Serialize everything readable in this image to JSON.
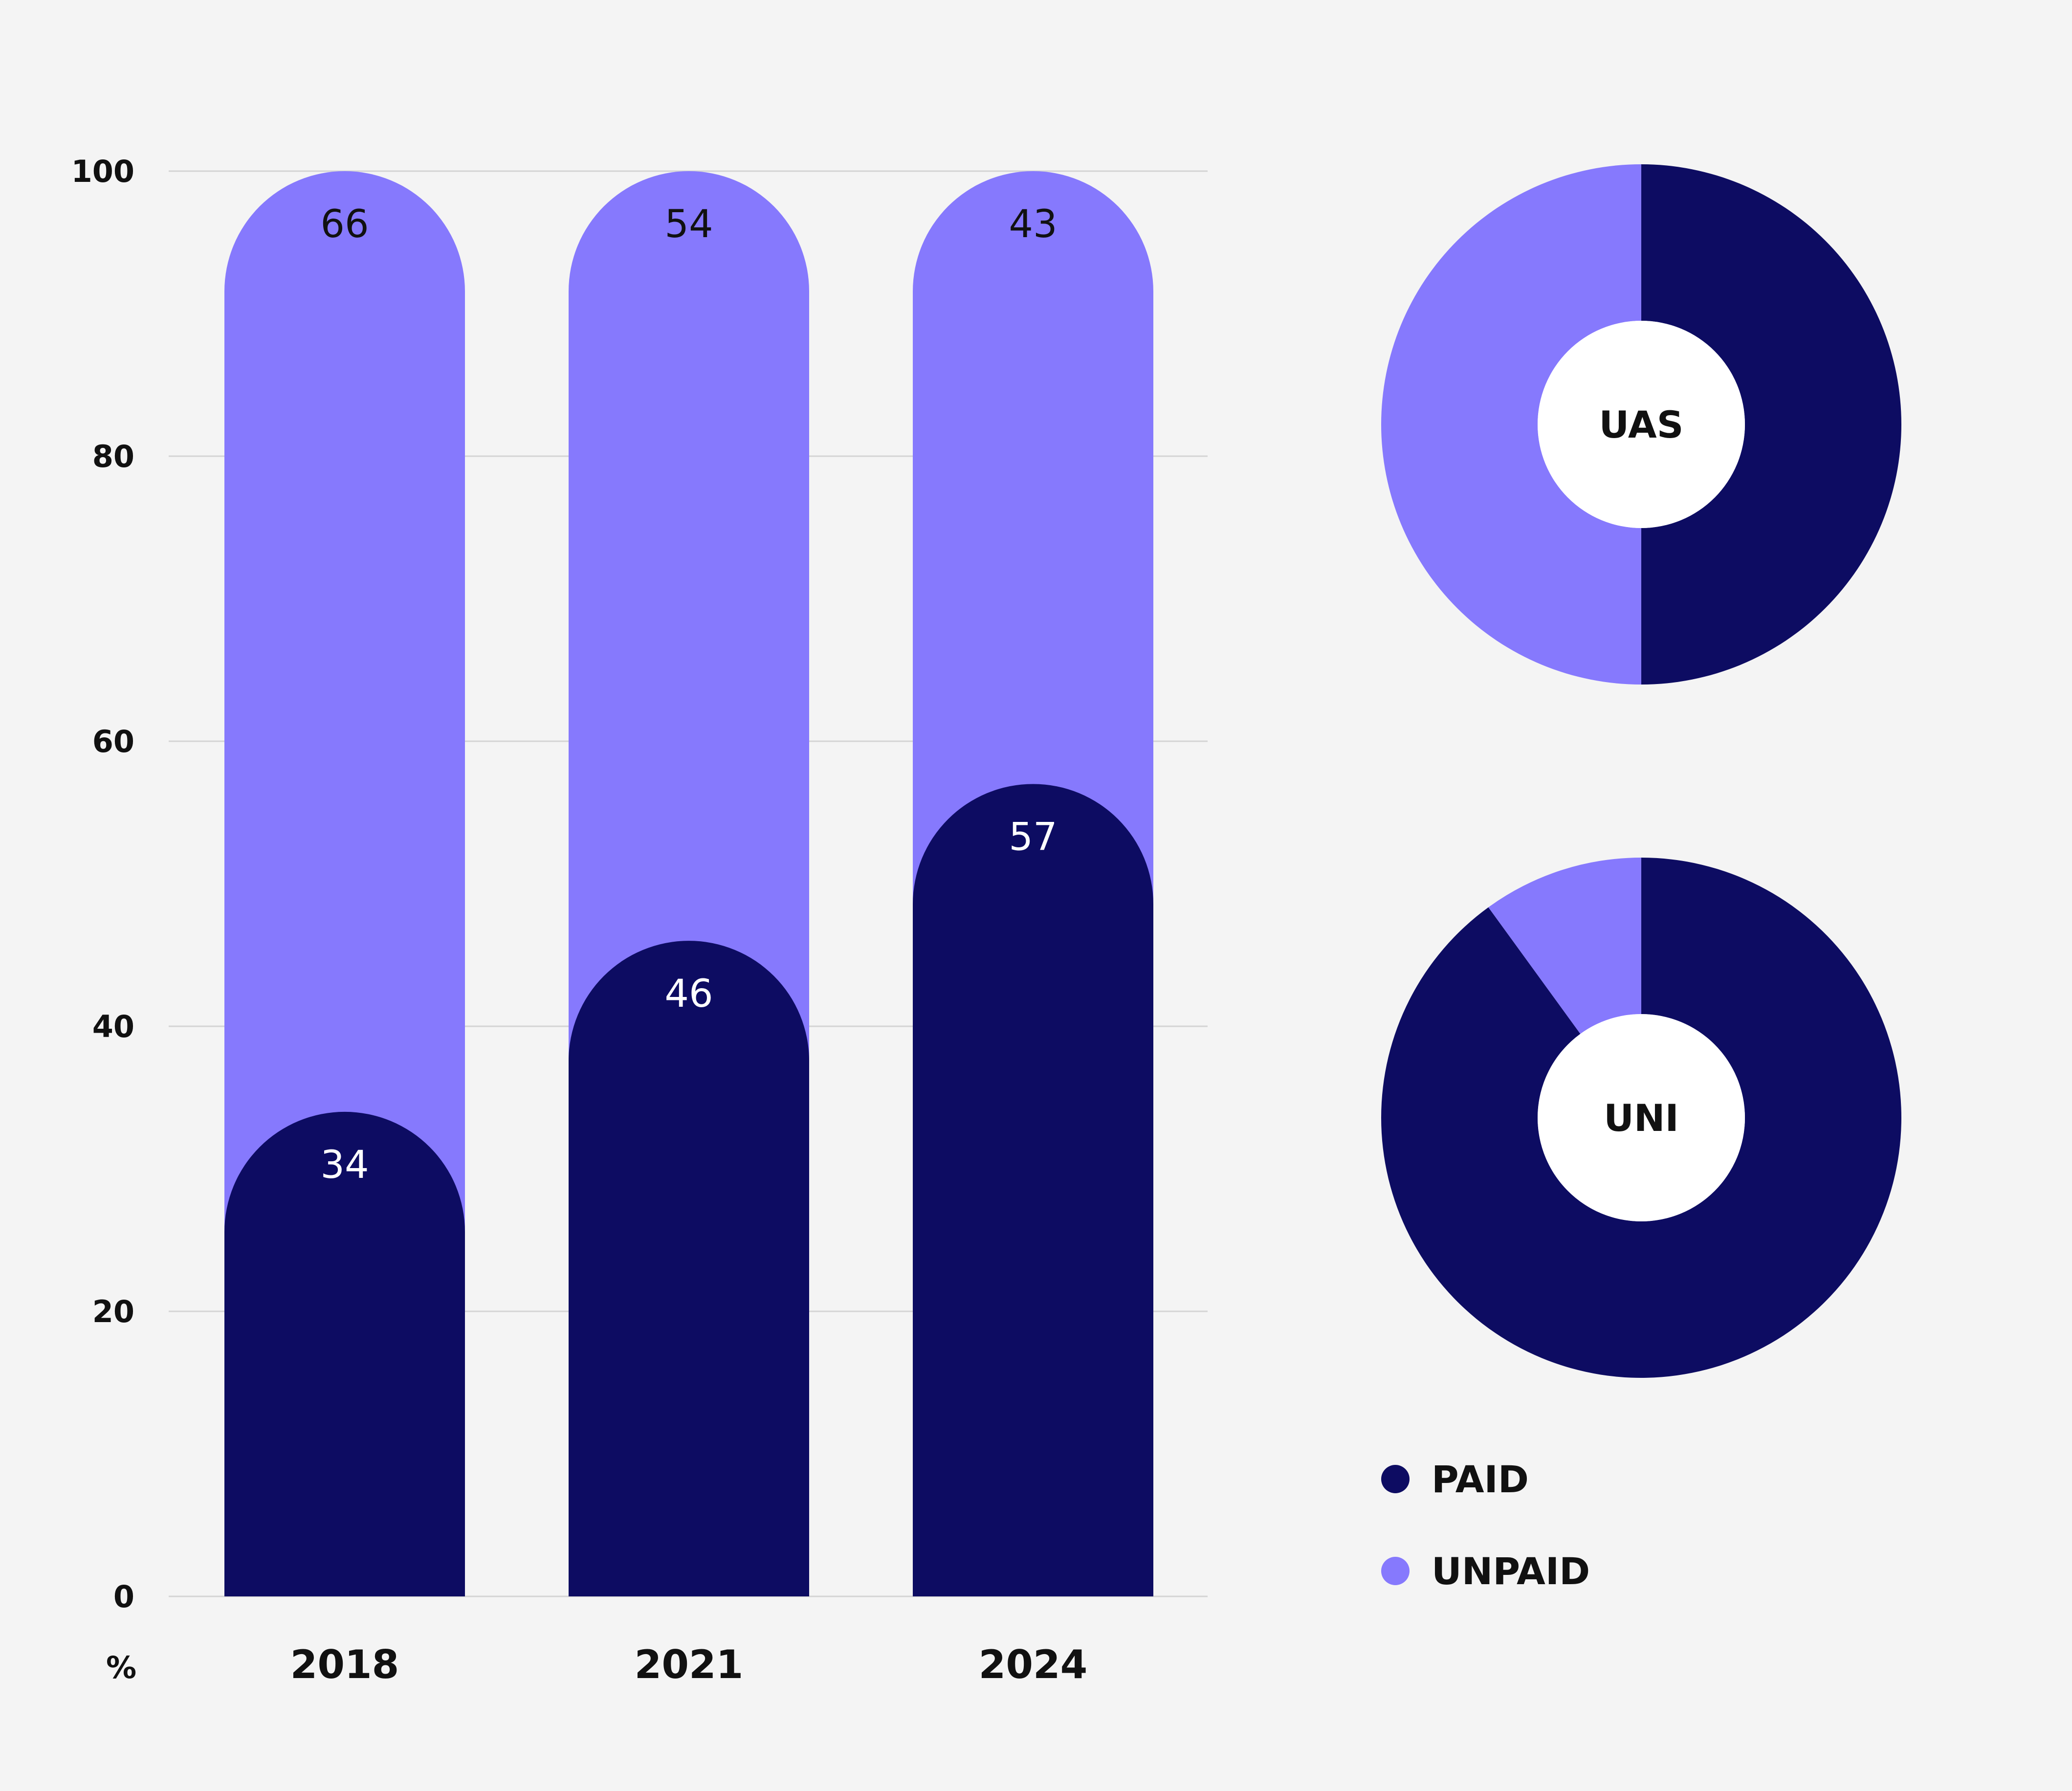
{
  "colors": {
    "paid": "#0d0c62",
    "unpaid": "#8679fd",
    "background": "#f4f4f4",
    "grid": "#d4d4d4",
    "donut_hole": "#ffffff"
  },
  "chart_data": [
    {
      "type": "bar",
      "stacked": true,
      "categories": [
        "2018",
        "2021",
        "2024"
      ],
      "ylabel": "%",
      "ylim": [
        0,
        100
      ],
      "yticks": [
        0,
        20,
        40,
        60,
        80,
        100
      ],
      "grid": true,
      "series": [
        {
          "name": "PAID",
          "key": "paid",
          "values": [
            34,
            46,
            57
          ]
        },
        {
          "name": "UNPAID",
          "key": "unpaid",
          "values": [
            66,
            54,
            43
          ]
        }
      ]
    },
    {
      "type": "pie",
      "style": "donut",
      "label": "UAS",
      "slices": [
        {
          "name": "PAID",
          "key": "paid",
          "value": 50
        },
        {
          "name": "UNPAID",
          "key": "unpaid",
          "value": 50
        }
      ]
    },
    {
      "type": "pie",
      "style": "donut",
      "label": "UNI",
      "slices": [
        {
          "name": "PAID",
          "key": "paid",
          "value": 90
        },
        {
          "name": "UNPAID",
          "key": "unpaid",
          "value": 10
        }
      ]
    }
  ],
  "legend": {
    "placement": "bottom-right",
    "items": [
      {
        "label": "PAID",
        "key": "paid"
      },
      {
        "label": "UNPAID",
        "key": "unpaid"
      }
    ]
  }
}
